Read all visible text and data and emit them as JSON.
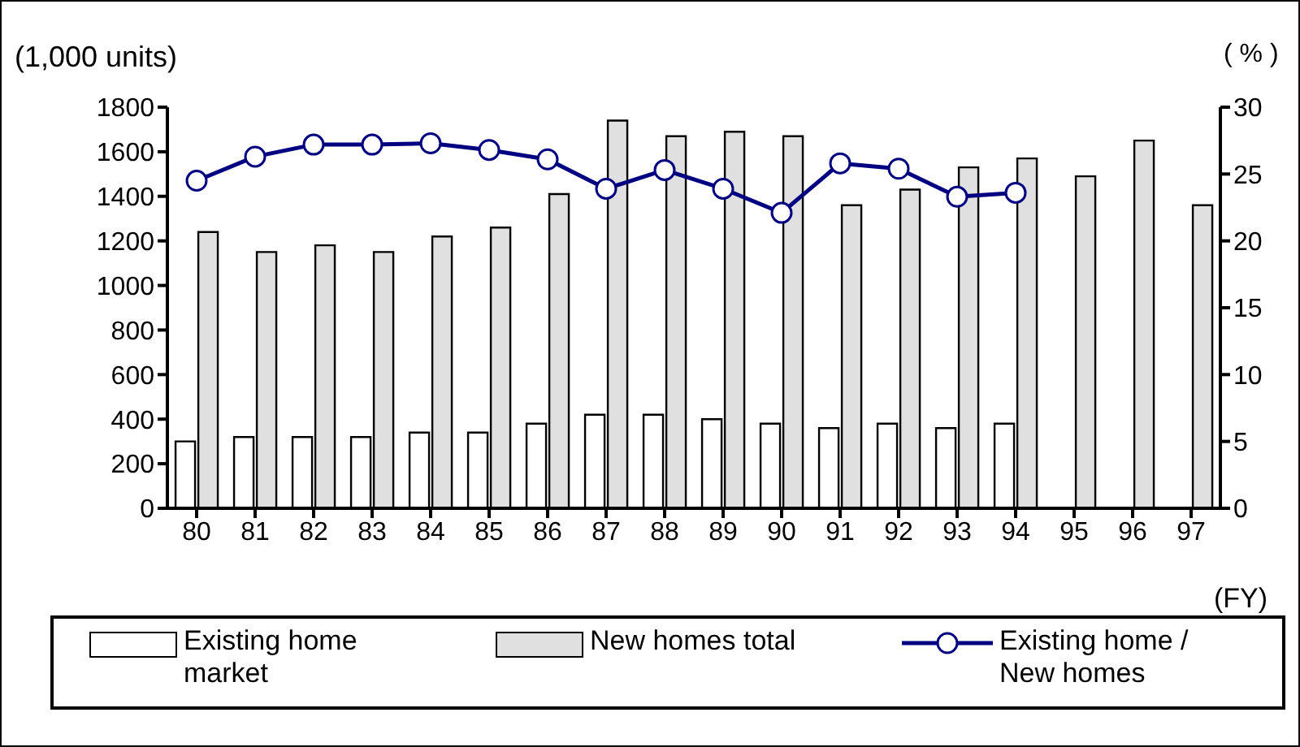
{
  "chart_data": {
    "type": "bar",
    "ylabel": "(1,000 units)",
    "y2label": "( % )",
    "xlabel": "(FY)",
    "categories": [
      "80",
      "81",
      "82",
      "83",
      "84",
      "85",
      "86",
      "87",
      "88",
      "89",
      "90",
      "91",
      "92",
      "93",
      "94",
      "95",
      "96",
      "97"
    ],
    "series": [
      {
        "name": "Existing home market",
        "color": "#ffffff",
        "values": [
          300,
          320,
          320,
          320,
          340,
          340,
          380,
          420,
          420,
          400,
          380,
          360,
          380,
          360,
          380,
          null,
          null,
          null
        ]
      },
      {
        "name": "New homes total",
        "color": "#e0e0e0",
        "values": [
          1240,
          1150,
          1180,
          1150,
          1220,
          1260,
          1410,
          1740,
          1670,
          1690,
          1670,
          1360,
          1430,
          1530,
          1570,
          1490,
          1650,
          1360
        ]
      },
      {
        "name": "Existing home / New homes",
        "type": "line",
        "axis": "y2",
        "color": "#000080",
        "values": [
          24.5,
          26.3,
          27.2,
          27.2,
          27.3,
          26.8,
          26.1,
          23.9,
          25.3,
          23.9,
          22.1,
          25.8,
          25.4,
          23.3,
          23.6,
          null,
          null,
          null
        ]
      }
    ],
    "ylim": [
      0,
      1800
    ],
    "yticks": [
      0,
      200,
      400,
      600,
      800,
      1000,
      1200,
      1400,
      1600,
      1800
    ],
    "y2lim": [
      0,
      30
    ],
    "y2ticks": [
      0,
      5,
      10,
      15,
      20,
      25,
      30
    ],
    "grid": false,
    "legend": "bottom",
    "marker": "circle"
  }
}
